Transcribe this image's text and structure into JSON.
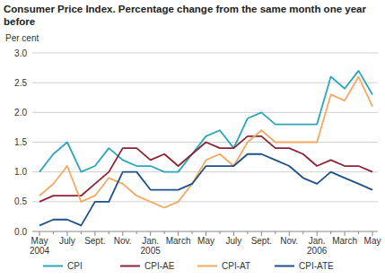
{
  "chart_data": {
    "type": "line",
    "title": "Consumer Price Index. Percentage change from the same month one year before",
    "y_label": "Per cent",
    "categories": [
      "May 2004",
      null,
      "July",
      null,
      "Sept.",
      null,
      "Nov.",
      null,
      "Jan. 2005",
      null,
      "March",
      null,
      "May",
      null,
      "July",
      null,
      "Sept.",
      null,
      "Nov.",
      null,
      "Jan. 2006",
      null,
      "March",
      null,
      "May"
    ],
    "series": [
      {
        "name": "CPI",
        "color": "#2ba6b8",
        "values": [
          1.0,
          1.3,
          1.5,
          1.0,
          1.1,
          1.4,
          1.2,
          1.1,
          1.1,
          1.0,
          1.0,
          1.3,
          1.6,
          1.7,
          1.4,
          1.9,
          2.0,
          1.8,
          1.8,
          1.8,
          1.8,
          2.6,
          2.4,
          2.7,
          2.3
        ]
      },
      {
        "name": "CPI-AE",
        "color": "#8c2334",
        "values": [
          0.5,
          0.6,
          0.6,
          0.6,
          0.8,
          1.0,
          1.4,
          1.4,
          1.2,
          1.3,
          1.1,
          1.3,
          1.5,
          1.4,
          1.4,
          1.6,
          1.6,
          1.4,
          1.4,
          1.3,
          1.1,
          1.2,
          1.1,
          1.1,
          1.0
        ]
      },
      {
        "name": "CPI-AT",
        "color": "#f2a962",
        "values": [
          0.6,
          0.8,
          1.1,
          0.5,
          0.6,
          0.9,
          0.8,
          0.6,
          0.5,
          0.4,
          0.5,
          0.8,
          1.2,
          1.3,
          1.1,
          1.5,
          1.7,
          1.5,
          1.5,
          1.5,
          1.5,
          2.3,
          2.2,
          2.6,
          2.1
        ]
      },
      {
        "name": "CPI-ATE",
        "color": "#1c4f8c",
        "values": [
          0.1,
          0.2,
          0.2,
          0.1,
          0.5,
          0.5,
          1.0,
          1.0,
          0.7,
          0.7,
          0.7,
          0.8,
          1.1,
          1.1,
          1.1,
          1.3,
          1.3,
          1.2,
          1.1,
          0.9,
          0.8,
          1.0,
          0.9,
          0.8,
          0.7
        ]
      }
    ],
    "ylim": [
      0,
      3
    ],
    "yticks": [
      {
        "value": 0,
        "label": "0.0"
      },
      {
        "value": 0.5,
        "label": "0.5"
      },
      {
        "value": 1,
        "label": "1.0"
      },
      {
        "value": 1.5,
        "label": "1.5"
      },
      {
        "value": 2,
        "label": "2.0"
      },
      {
        "value": 2.5,
        "label": "2.5"
      },
      {
        "value": 3,
        "label": "3.0"
      }
    ],
    "grid": true,
    "legend": "bottom"
  }
}
